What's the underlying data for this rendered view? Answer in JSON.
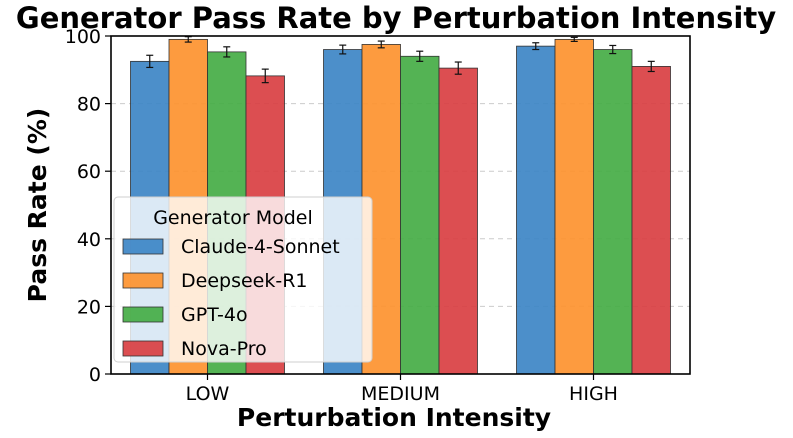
{
  "chart_data": {
    "type": "bar",
    "title": "Generator Pass Rate by Perturbation Intensity",
    "xlabel": "Perturbation Intensity",
    "ylabel": "Pass Rate (%)",
    "ylim": [
      0,
      100
    ],
    "yticks": [
      "0",
      "20",
      "40",
      "60",
      "80",
      "100"
    ],
    "grid": "y, dashed",
    "categories": [
      "LOW",
      "MEDIUM",
      "HIGH"
    ],
    "series": [
      {
        "name": "Claude-4-Sonnet",
        "color": "#3d85c6",
        "values": [
          92.5,
          96.0,
          97.0
        ],
        "errors": [
          1.8,
          1.3,
          1.0
        ]
      },
      {
        "name": "Deepseek-R1",
        "color": "#fd922f",
        "values": [
          99.0,
          97.5,
          99.0
        ],
        "errors": [
          0.8,
          1.0,
          0.6
        ]
      },
      {
        "name": "GPT-4o",
        "color": "#45ad45",
        "values": [
          95.3,
          94.0,
          96.0
        ],
        "errors": [
          1.5,
          1.5,
          1.2
        ]
      },
      {
        "name": "Nova-Pro",
        "color": "#d93f42",
        "values": [
          88.2,
          90.5,
          91.0
        ],
        "errors": [
          2.0,
          1.8,
          1.5
        ]
      }
    ],
    "legend": {
      "title": "Generator Model",
      "position": "lower-left"
    }
  }
}
